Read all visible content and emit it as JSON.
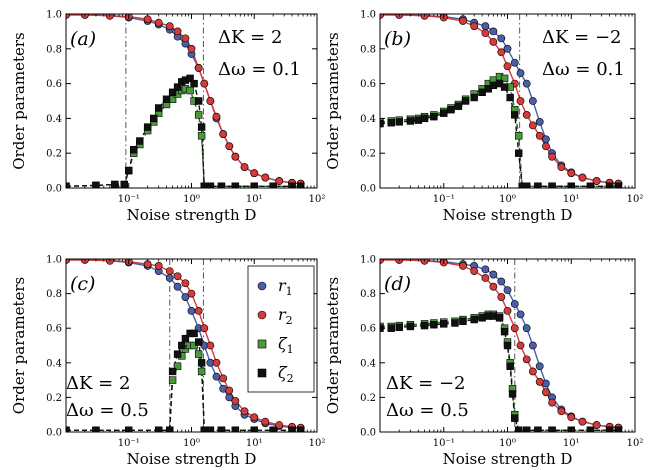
{
  "chart_data": [
    {
      "type": "scatter",
      "panel_label": "(a)",
      "annotation": [
        "ΔK = 2",
        "Δω = 0.1"
      ],
      "xlabel": "Noise strength D",
      "ylabel": "Order parameters",
      "xscale": "log",
      "xlim": [
        0.01,
        100
      ],
      "ylim": [
        0,
        1
      ],
      "xticks": [
        "10⁻¹",
        "10⁰",
        "10¹",
        "10²"
      ],
      "yticks": [
        "0.0",
        "0.2",
        "0.4",
        "0.6",
        "0.8",
        "1.0"
      ],
      "vlines": [
        0.09,
        1.55
      ],
      "grid": false,
      "series": [
        {
          "name": "r₁",
          "marker": "circle",
          "color": "#4a5fa8",
          "line_color": "#4a5fa8",
          "x": [
            0.01,
            0.02,
            0.05,
            0.1,
            0.2,
            0.3,
            0.45,
            0.6,
            0.8,
            1.0,
            1.3,
            1.6,
            2.0,
            2.5,
            3.2,
            4.0,
            5.0,
            7.0,
            10.0,
            15.0,
            25.0,
            40.0,
            55.0
          ],
          "y": [
            0.995,
            0.995,
            0.99,
            0.98,
            0.96,
            0.94,
            0.91,
            0.87,
            0.83,
            0.77,
            0.69,
            0.6,
            0.5,
            0.4,
            0.31,
            0.24,
            0.18,
            0.12,
            0.085,
            0.06,
            0.04,
            0.03,
            0.025
          ]
        },
        {
          "name": "r₂",
          "marker": "circle",
          "color": "#d63a3a",
          "line_color": "#d63a3a",
          "x": [
            0.01,
            0.02,
            0.05,
            0.1,
            0.2,
            0.3,
            0.45,
            0.6,
            0.8,
            1.0,
            1.3,
            1.6,
            2.0,
            2.5,
            3.2,
            4.0,
            5.0,
            7.0,
            10.0,
            15.0,
            25.0,
            40.0,
            55.0
          ],
          "y": [
            0.995,
            0.995,
            0.99,
            0.985,
            0.97,
            0.95,
            0.93,
            0.9,
            0.86,
            0.8,
            0.69,
            0.6,
            0.5,
            0.41,
            0.31,
            0.24,
            0.18,
            0.12,
            0.085,
            0.06,
            0.04,
            0.03,
            0.025
          ]
        },
        {
          "name": "ζ₁",
          "marker": "square",
          "color": "#4a9a3c",
          "line_color": "#2f6b29",
          "x": [
            0.01,
            0.03,
            0.06,
            0.085,
            0.1,
            0.12,
            0.15,
            0.2,
            0.25,
            0.3,
            0.4,
            0.5,
            0.6,
            0.7,
            0.8,
            0.95,
            1.1,
            1.3,
            1.45,
            1.6,
            2.0,
            3.0,
            5.0,
            10.0,
            20.0,
            40.0,
            55.0
          ],
          "y": [
            0.01,
            0.015,
            0.02,
            0.02,
            0.1,
            0.2,
            0.25,
            0.33,
            0.38,
            0.43,
            0.48,
            0.51,
            0.54,
            0.56,
            0.57,
            0.56,
            0.5,
            0.42,
            0.3,
            0.01,
            0.01,
            0.01,
            0.01,
            0.01,
            0.01,
            0.01,
            0.01
          ]
        },
        {
          "name": "ζ₂",
          "marker": "square",
          "color": "#111111",
          "line_color": "#111111",
          "x": [
            0.01,
            0.03,
            0.06,
            0.085,
            0.1,
            0.12,
            0.15,
            0.2,
            0.25,
            0.3,
            0.4,
            0.5,
            0.6,
            0.7,
            0.8,
            0.95,
            1.1,
            1.3,
            1.45,
            1.6,
            2.0,
            3.0,
            5.0,
            10.0,
            20.0,
            40.0,
            55.0
          ],
          "y": [
            0.01,
            0.015,
            0.02,
            0.02,
            0.1,
            0.22,
            0.27,
            0.35,
            0.4,
            0.46,
            0.51,
            0.55,
            0.58,
            0.61,
            0.62,
            0.63,
            0.6,
            0.5,
            0.35,
            0.01,
            0.01,
            0.01,
            0.01,
            0.01,
            0.01,
            0.01,
            0.01
          ]
        }
      ]
    },
    {
      "type": "scatter",
      "panel_label": "(b)",
      "annotation": [
        "ΔK = −2",
        "Δω = 0.1"
      ],
      "xlabel": "Noise strength D",
      "ylabel": "Order parameters",
      "xscale": "log",
      "xlim": [
        0.01,
        100
      ],
      "ylim": [
        0,
        1
      ],
      "xticks": [
        "10⁻¹",
        "10⁰",
        "10¹",
        "10²"
      ],
      "yticks": [
        "0.0",
        "0.2",
        "0.4",
        "0.6",
        "0.8",
        "1.0"
      ],
      "vlines": [
        1.55
      ],
      "grid": false,
      "series": [
        {
          "name": "r₁",
          "marker": "circle",
          "color": "#4a5fa8",
          "line_color": "#4a5fa8",
          "x": [
            0.01,
            0.02,
            0.05,
            0.1,
            0.2,
            0.3,
            0.45,
            0.6,
            0.8,
            1.0,
            1.3,
            1.6,
            2.0,
            2.5,
            3.2,
            4.0,
            5.0,
            7.0,
            10.0,
            15.0,
            25.0,
            40.0,
            55.0
          ],
          "y": [
            0.995,
            0.995,
            0.99,
            0.985,
            0.97,
            0.95,
            0.93,
            0.9,
            0.86,
            0.8,
            0.72,
            0.66,
            0.6,
            0.5,
            0.38,
            0.28,
            0.2,
            0.13,
            0.09,
            0.06,
            0.04,
            0.03,
            0.025
          ]
        },
        {
          "name": "r₂",
          "marker": "circle",
          "color": "#d63a3a",
          "line_color": "#d63a3a",
          "x": [
            0.01,
            0.02,
            0.05,
            0.1,
            0.2,
            0.3,
            0.45,
            0.6,
            0.8,
            1.0,
            1.3,
            1.6,
            2.0,
            2.5,
            3.2,
            4.0,
            5.0,
            7.0,
            10.0,
            15.0,
            25.0,
            40.0,
            55.0
          ],
          "y": [
            0.995,
            0.995,
            0.99,
            0.98,
            0.96,
            0.93,
            0.89,
            0.84,
            0.78,
            0.7,
            0.6,
            0.5,
            0.42,
            0.36,
            0.3,
            0.24,
            0.18,
            0.12,
            0.085,
            0.06,
            0.04,
            0.03,
            0.025
          ]
        },
        {
          "name": "ζ₁",
          "marker": "square",
          "color": "#4a9a3c",
          "line_color": "#2f6b29",
          "x": [
            0.01,
            0.015,
            0.02,
            0.03,
            0.04,
            0.05,
            0.07,
            0.1,
            0.13,
            0.17,
            0.22,
            0.3,
            0.4,
            0.5,
            0.6,
            0.75,
            0.9,
            1.1,
            1.3,
            1.5,
            1.7,
            2.0,
            3.0,
            5.0,
            10.0,
            20.0,
            40.0,
            55.0
          ],
          "y": [
            0.38,
            0.385,
            0.39,
            0.395,
            0.4,
            0.41,
            0.42,
            0.44,
            0.46,
            0.48,
            0.51,
            0.54,
            0.57,
            0.6,
            0.62,
            0.64,
            0.63,
            0.58,
            0.45,
            0.3,
            0.01,
            0.01,
            0.01,
            0.01,
            0.01,
            0.01,
            0.01,
            0.01
          ]
        },
        {
          "name": "ζ₂",
          "marker": "square",
          "color": "#111111",
          "line_color": "#111111",
          "x": [
            0.01,
            0.015,
            0.02,
            0.03,
            0.04,
            0.05,
            0.07,
            0.1,
            0.13,
            0.17,
            0.22,
            0.3,
            0.4,
            0.5,
            0.6,
            0.75,
            0.9,
            1.1,
            1.3,
            1.5,
            1.7,
            2.0,
            3.0,
            5.0,
            10.0,
            20.0,
            40.0,
            55.0
          ],
          "y": [
            0.37,
            0.375,
            0.38,
            0.385,
            0.39,
            0.4,
            0.41,
            0.43,
            0.45,
            0.47,
            0.5,
            0.52,
            0.55,
            0.57,
            0.59,
            0.6,
            0.58,
            0.52,
            0.42,
            0.2,
            0.01,
            0.01,
            0.01,
            0.01,
            0.01,
            0.01,
            0.01,
            0.01
          ]
        }
      ]
    },
    {
      "type": "scatter",
      "panel_label": "(c)",
      "annotation": [
        "ΔK = 2",
        "Δω = 0.5"
      ],
      "xlabel": "Noise strength D",
      "ylabel": "Order parameters",
      "xscale": "log",
      "xlim": [
        0.01,
        100
      ],
      "ylim": [
        0,
        1
      ],
      "xticks": [
        "10⁻¹",
        "10⁰",
        "10¹",
        "10²"
      ],
      "yticks": [
        "0.0",
        "0.2",
        "0.4",
        "0.6",
        "0.8",
        "1.0"
      ],
      "vlines": [
        0.45,
        1.55
      ],
      "grid": false,
      "legend": [
        "r₁",
        "r₂",
        "ζ₁",
        "ζ₂"
      ],
      "legend_position": "upper-right",
      "series": [
        {
          "name": "r₁",
          "marker": "circle",
          "color": "#4a5fa8",
          "line_color": "#4a5fa8",
          "x": [
            0.01,
            0.02,
            0.05,
            0.1,
            0.2,
            0.3,
            0.45,
            0.6,
            0.8,
            1.0,
            1.3,
            1.6,
            2.0,
            2.5,
            3.2,
            4.0,
            5.0,
            7.0,
            10.0,
            15.0,
            25.0,
            40.0,
            55.0
          ],
          "y": [
            0.995,
            0.995,
            0.99,
            0.98,
            0.96,
            0.93,
            0.89,
            0.84,
            0.78,
            0.7,
            0.6,
            0.5,
            0.4,
            0.32,
            0.25,
            0.2,
            0.15,
            0.1,
            0.075,
            0.05,
            0.035,
            0.025,
            0.02
          ]
        },
        {
          "name": "r₂",
          "marker": "circle",
          "color": "#d63a3a",
          "line_color": "#d63a3a",
          "x": [
            0.01,
            0.02,
            0.05,
            0.1,
            0.2,
            0.3,
            0.45,
            0.6,
            0.8,
            1.0,
            1.3,
            1.6,
            2.0,
            2.5,
            3.2,
            4.0,
            5.0,
            7.0,
            10.0,
            15.0,
            25.0,
            40.0,
            55.0
          ],
          "y": [
            0.995,
            0.995,
            0.99,
            0.985,
            0.97,
            0.96,
            0.93,
            0.9,
            0.86,
            0.8,
            0.7,
            0.6,
            0.5,
            0.4,
            0.31,
            0.24,
            0.18,
            0.12,
            0.085,
            0.06,
            0.04,
            0.03,
            0.025
          ]
        },
        {
          "name": "ζ₁",
          "marker": "square",
          "color": "#4a9a3c",
          "line_color": "#2f6b29",
          "x": [
            0.01,
            0.03,
            0.1,
            0.3,
            0.45,
            0.5,
            0.6,
            0.7,
            0.8,
            0.95,
            1.1,
            1.3,
            1.45,
            1.6,
            2.0,
            3.0,
            5.0,
            10.0,
            20.0,
            40.0,
            55.0
          ],
          "y": [
            0.01,
            0.01,
            0.01,
            0.01,
            0.01,
            0.3,
            0.38,
            0.44,
            0.48,
            0.5,
            0.5,
            0.45,
            0.35,
            0.01,
            0.01,
            0.01,
            0.01,
            0.01,
            0.01,
            0.01,
            0.01
          ]
        },
        {
          "name": "ζ₂",
          "marker": "square",
          "color": "#111111",
          "line_color": "#111111",
          "x": [
            0.01,
            0.03,
            0.1,
            0.3,
            0.45,
            0.5,
            0.6,
            0.7,
            0.8,
            0.95,
            1.1,
            1.3,
            1.45,
            1.6,
            2.0,
            3.0,
            5.0,
            10.0,
            20.0,
            40.0,
            55.0
          ],
          "y": [
            0.01,
            0.01,
            0.01,
            0.01,
            0.01,
            0.35,
            0.45,
            0.5,
            0.54,
            0.57,
            0.57,
            0.52,
            0.4,
            0.01,
            0.01,
            0.01,
            0.01,
            0.01,
            0.01,
            0.01,
            0.01
          ]
        }
      ]
    },
    {
      "type": "scatter",
      "panel_label": "(d)",
      "annotation": [
        "ΔK = −2",
        "Δω = 0.5"
      ],
      "xlabel": "Noise strength D",
      "ylabel": "Order parameters",
      "xscale": "log",
      "xlim": [
        0.01,
        100
      ],
      "ylim": [
        0,
        1
      ],
      "xticks": [
        "10⁻¹",
        "10⁰",
        "10¹",
        "10²"
      ],
      "yticks": [
        "0.0",
        "0.2",
        "0.4",
        "0.6",
        "0.8",
        "1.0"
      ],
      "vlines": [
        1.3
      ],
      "grid": false,
      "series": [
        {
          "name": "r₁",
          "marker": "circle",
          "color": "#4a5fa8",
          "line_color": "#4a5fa8",
          "x": [
            0.01,
            0.02,
            0.05,
            0.1,
            0.2,
            0.3,
            0.45,
            0.6,
            0.8,
            1.0,
            1.3,
            1.6,
            2.0,
            2.5,
            3.2,
            4.0,
            5.0,
            7.0,
            10.0,
            15.0,
            25.0,
            40.0,
            55.0
          ],
          "y": [
            0.995,
            0.995,
            0.99,
            0.985,
            0.97,
            0.96,
            0.94,
            0.91,
            0.87,
            0.82,
            0.74,
            0.68,
            0.6,
            0.5,
            0.38,
            0.28,
            0.2,
            0.13,
            0.09,
            0.06,
            0.04,
            0.03,
            0.025
          ]
        },
        {
          "name": "r₂",
          "marker": "circle",
          "color": "#d63a3a",
          "line_color": "#d63a3a",
          "x": [
            0.01,
            0.02,
            0.05,
            0.1,
            0.2,
            0.3,
            0.45,
            0.6,
            0.8,
            1.0,
            1.3,
            1.6,
            2.0,
            2.5,
            3.2,
            4.0,
            5.0,
            7.0,
            10.0,
            15.0,
            25.0,
            40.0,
            55.0
          ],
          "y": [
            0.995,
            0.995,
            0.99,
            0.98,
            0.96,
            0.93,
            0.89,
            0.84,
            0.78,
            0.7,
            0.6,
            0.5,
            0.42,
            0.35,
            0.29,
            0.23,
            0.17,
            0.12,
            0.085,
            0.06,
            0.04,
            0.03,
            0.025
          ]
        },
        {
          "name": "ζ₁",
          "marker": "square",
          "color": "#4a9a3c",
          "line_color": "#2f6b29",
          "x": [
            0.01,
            0.015,
            0.02,
            0.03,
            0.05,
            0.07,
            0.1,
            0.15,
            0.2,
            0.3,
            0.4,
            0.5,
            0.6,
            0.75,
            0.9,
            1.0,
            1.1,
            1.2,
            1.3,
            1.5,
            2.0,
            3.0,
            5.0,
            10.0,
            20.0,
            40.0,
            55.0
          ],
          "y": [
            0.61,
            0.61,
            0.615,
            0.62,
            0.625,
            0.63,
            0.635,
            0.64,
            0.65,
            0.66,
            0.67,
            0.68,
            0.68,
            0.67,
            0.6,
            0.52,
            0.4,
            0.25,
            0.1,
            0.01,
            0.01,
            0.01,
            0.01,
            0.01,
            0.01,
            0.01,
            0.01
          ]
        },
        {
          "name": "ζ₂",
          "marker": "square",
          "color": "#111111",
          "line_color": "#111111",
          "x": [
            0.01,
            0.015,
            0.02,
            0.03,
            0.05,
            0.07,
            0.1,
            0.15,
            0.2,
            0.3,
            0.4,
            0.5,
            0.6,
            0.75,
            0.9,
            1.0,
            1.1,
            1.2,
            1.3,
            1.5,
            2.0,
            3.0,
            5.0,
            10.0,
            20.0,
            40.0,
            55.0
          ],
          "y": [
            0.6,
            0.6,
            0.605,
            0.61,
            0.615,
            0.62,
            0.625,
            0.63,
            0.64,
            0.65,
            0.66,
            0.67,
            0.67,
            0.66,
            0.58,
            0.5,
            0.38,
            0.22,
            0.08,
            0.01,
            0.01,
            0.01,
            0.01,
            0.01,
            0.01,
            0.01,
            0.01
          ]
        }
      ]
    }
  ]
}
